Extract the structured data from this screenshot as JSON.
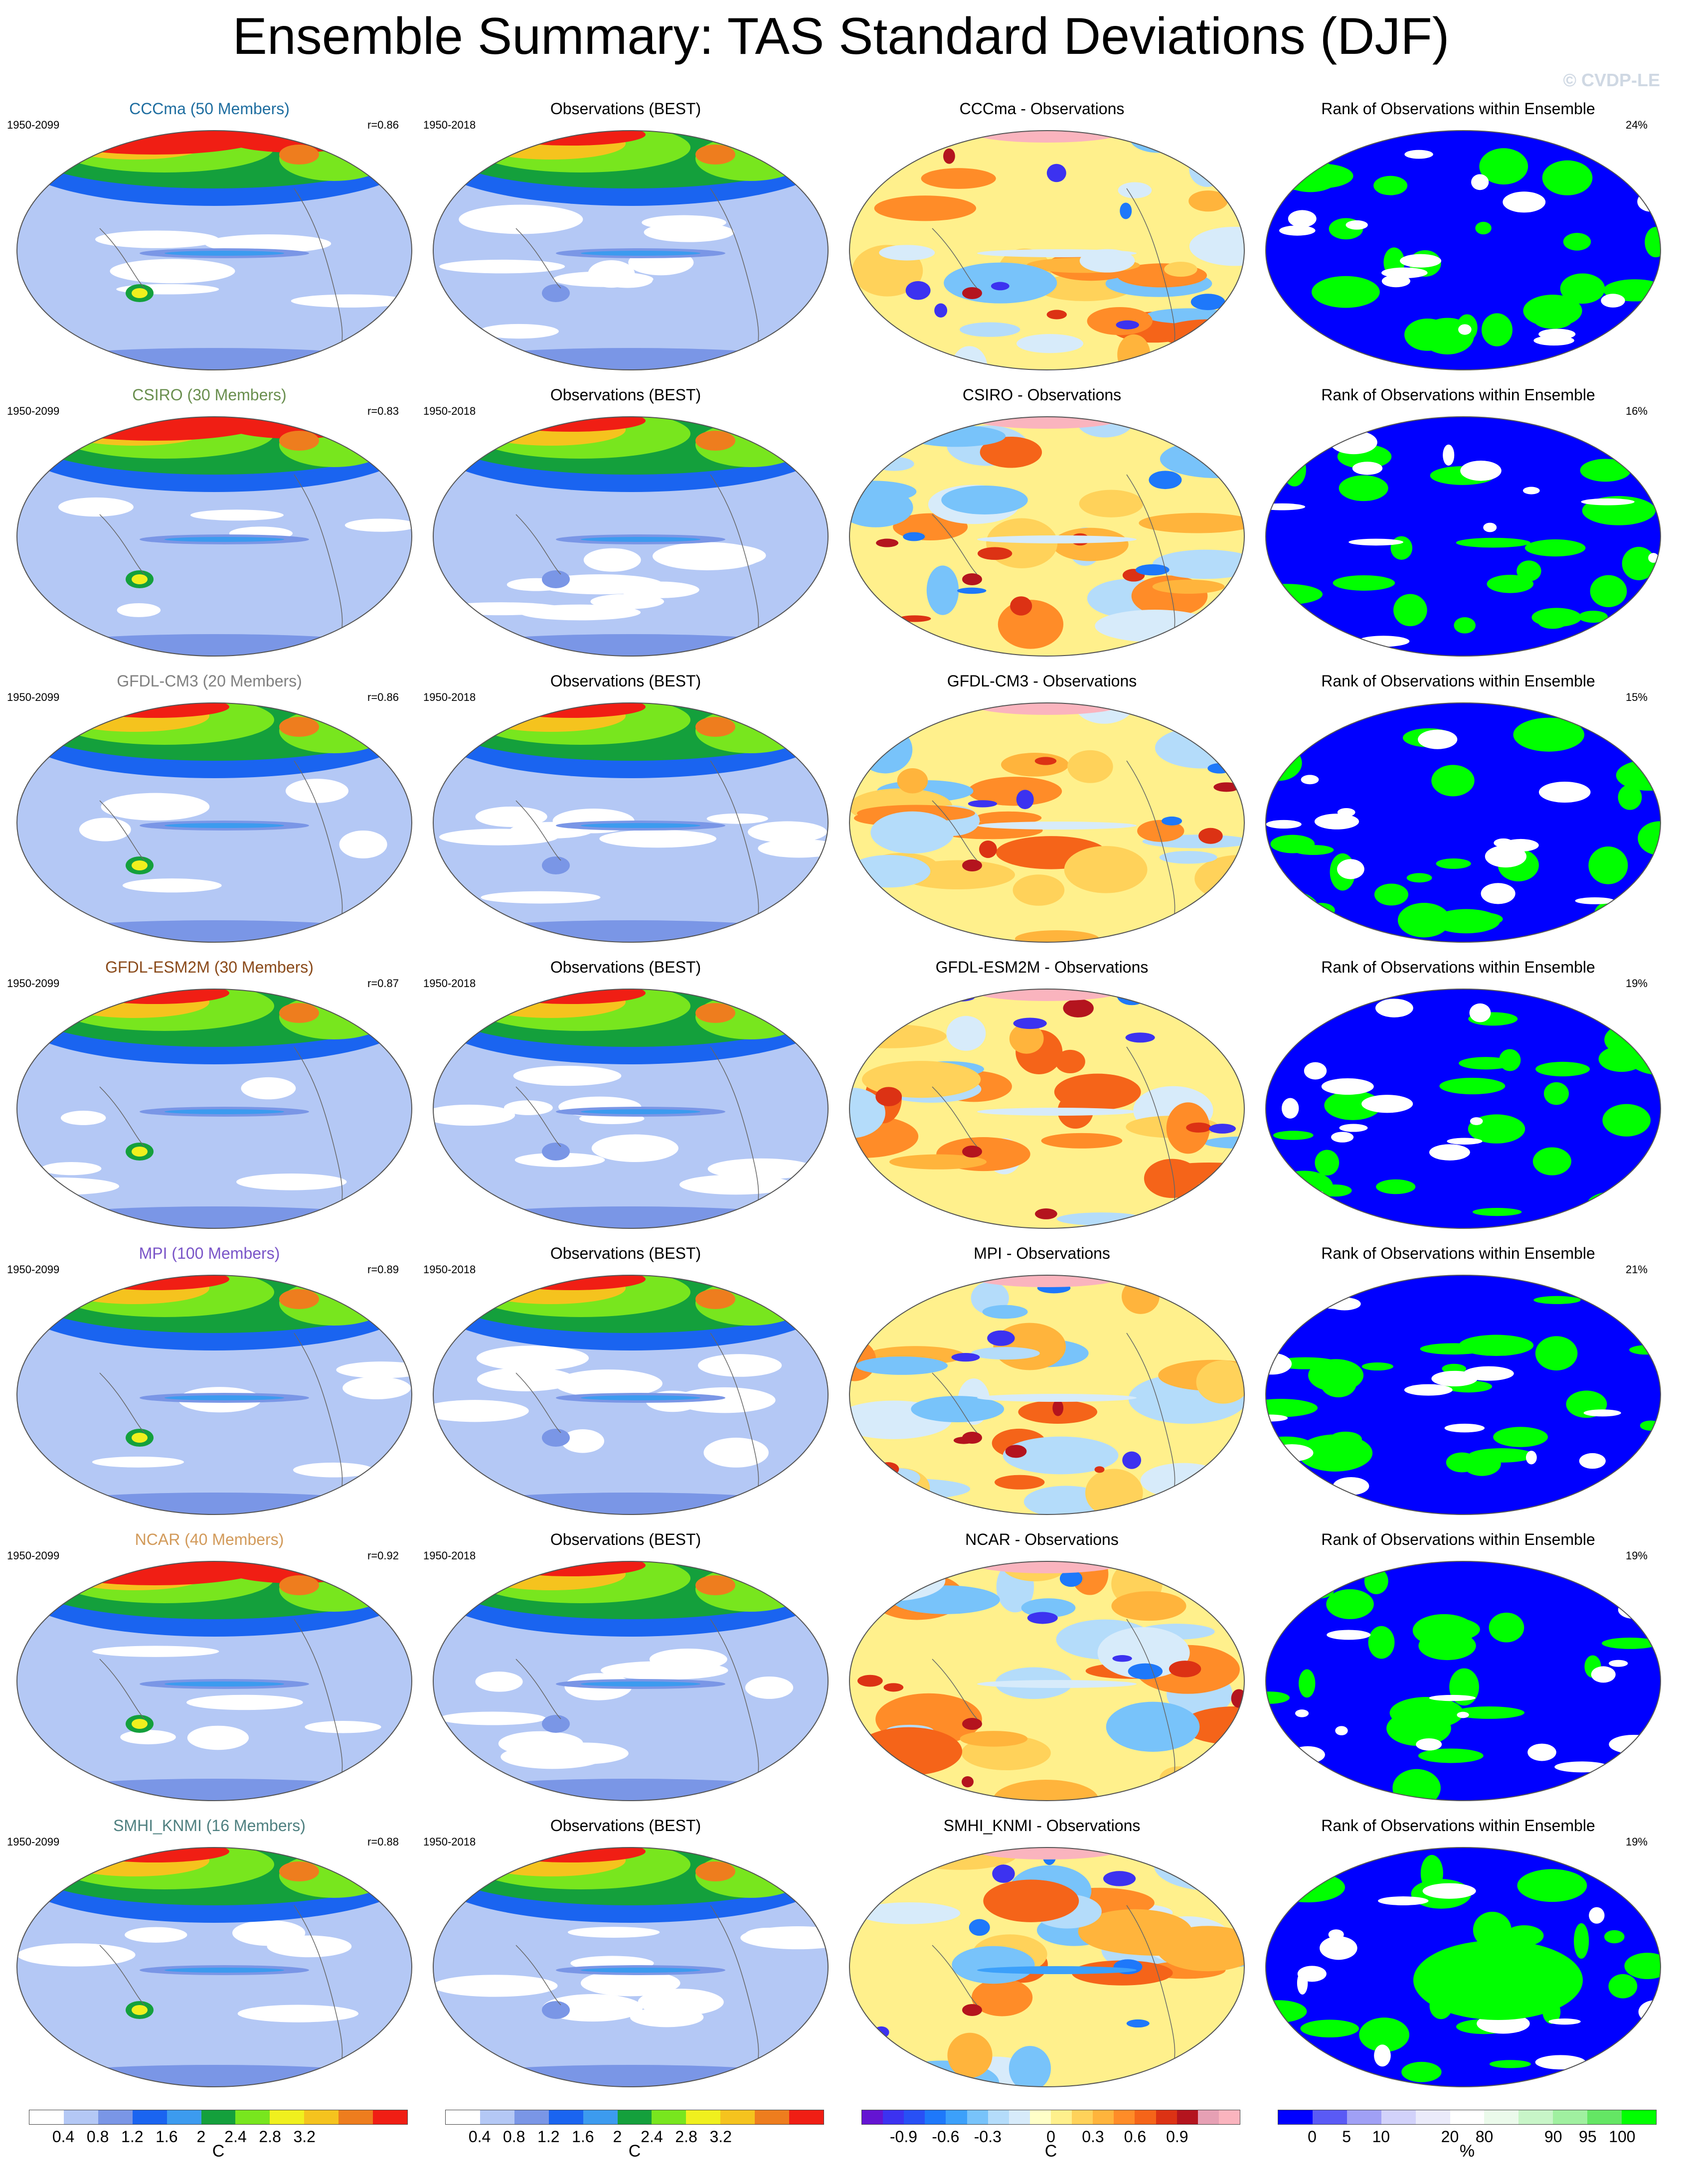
{
  "title": "Ensemble Summary: TAS Standard Deviations (DJF)",
  "watermark": "© CVDP-LE",
  "colors": {
    "std": [
      "#ffffff",
      "#b4c8f5",
      "#7a96e6",
      "#1a64f0",
      "#3c9bef",
      "#14a03c",
      "#78e61e",
      "#f0f01e",
      "#f5c31e",
      "#ee7d1e",
      "#f01e14"
    ],
    "diff": [
      "#6414d2",
      "#3c32f0",
      "#2850f5",
      "#1e78fa",
      "#3ca0fa",
      "#78c3fa",
      "#b4dcfa",
      "#d7ebfa",
      "#ffffc8",
      "#fff08c",
      "#ffd25a",
      "#ffb43c",
      "#ff8c28",
      "#f56419",
      "#dc3214",
      "#b4141e",
      "#e6a0b4",
      "#fab4be"
    ],
    "rank": [
      "#0000ff",
      "#5a5af5",
      "#a0a0f5",
      "#d2d2fa",
      "#ebebfa",
      "#ffffff",
      "#ebfaeb",
      "#c8f5c8",
      "#a0f0a0",
      "#64e664",
      "#00ff00"
    ]
  },
  "rows": [
    {
      "model": "CCCma (50 Members)",
      "model_short": "CCCma",
      "color": "#1f6ea0",
      "period": "1950-2099",
      "obs_period": "1950-2018",
      "r": "r=0.86",
      "rank": "24%"
    },
    {
      "model": "CSIRO (30 Members)",
      "model_short": "CSIRO",
      "color": "#6a8f4f",
      "period": "1950-2099",
      "obs_period": "1950-2018",
      "r": "r=0.83",
      "rank": "16%"
    },
    {
      "model": "GFDL-CM3 (20 Members)",
      "model_short": "GFDL-CM3",
      "color": "#808080",
      "period": "1950-2099",
      "obs_period": "1950-2018",
      "r": "r=0.86",
      "rank": "15%"
    },
    {
      "model": "GFDL-ESM2M (30 Members)",
      "model_short": "GFDL-ESM2M",
      "color": "#8a4a1a",
      "period": "1950-2099",
      "obs_period": "1950-2018",
      "r": "r=0.87",
      "rank": "19%"
    },
    {
      "model": "MPI (100 Members)",
      "model_short": "MPI",
      "color": "#7a55c8",
      "period": "1950-2099",
      "obs_period": "1950-2018",
      "r": "r=0.89",
      "rank": "21%"
    },
    {
      "model": "NCAR (40 Members)",
      "model_short": "NCAR",
      "color": "#d29a5a",
      "period": "1950-2099",
      "obs_period": "1950-2018",
      "r": "r=0.92",
      "rank": "19%"
    },
    {
      "model": "SMHI_KNMI (16 Members)",
      "model_short": "SMHI_KNMI",
      "color": "#4f8080",
      "period": "1950-2099",
      "obs_period": "1950-2018",
      "r": "r=0.88",
      "rank": "19%"
    }
  ],
  "obs_title": "Observations (BEST)",
  "diff_suffix": " - Observations",
  "rank_title": "Rank of Observations within Ensemble",
  "colorbars": {
    "std1": {
      "ticks": [
        "0.4",
        "0.8",
        "1.2",
        "1.6",
        "2",
        "2.4",
        "2.8",
        "3.2"
      ],
      "unit": "C"
    },
    "std2": {
      "ticks": [
        "0.4",
        "0.8",
        "1.2",
        "1.6",
        "2",
        "2.4",
        "2.8",
        "3.2"
      ],
      "unit": "C"
    },
    "diff": {
      "ticks": [
        "-0.9",
        "-0.6",
        "-0.3",
        "0",
        "0.3",
        "0.6",
        "0.9"
      ],
      "unit": "C"
    },
    "rank": {
      "ticks": [
        "0",
        "5",
        "10",
        "20",
        "80",
        "90",
        "95",
        "100"
      ],
      "unit": "%"
    }
  }
}
